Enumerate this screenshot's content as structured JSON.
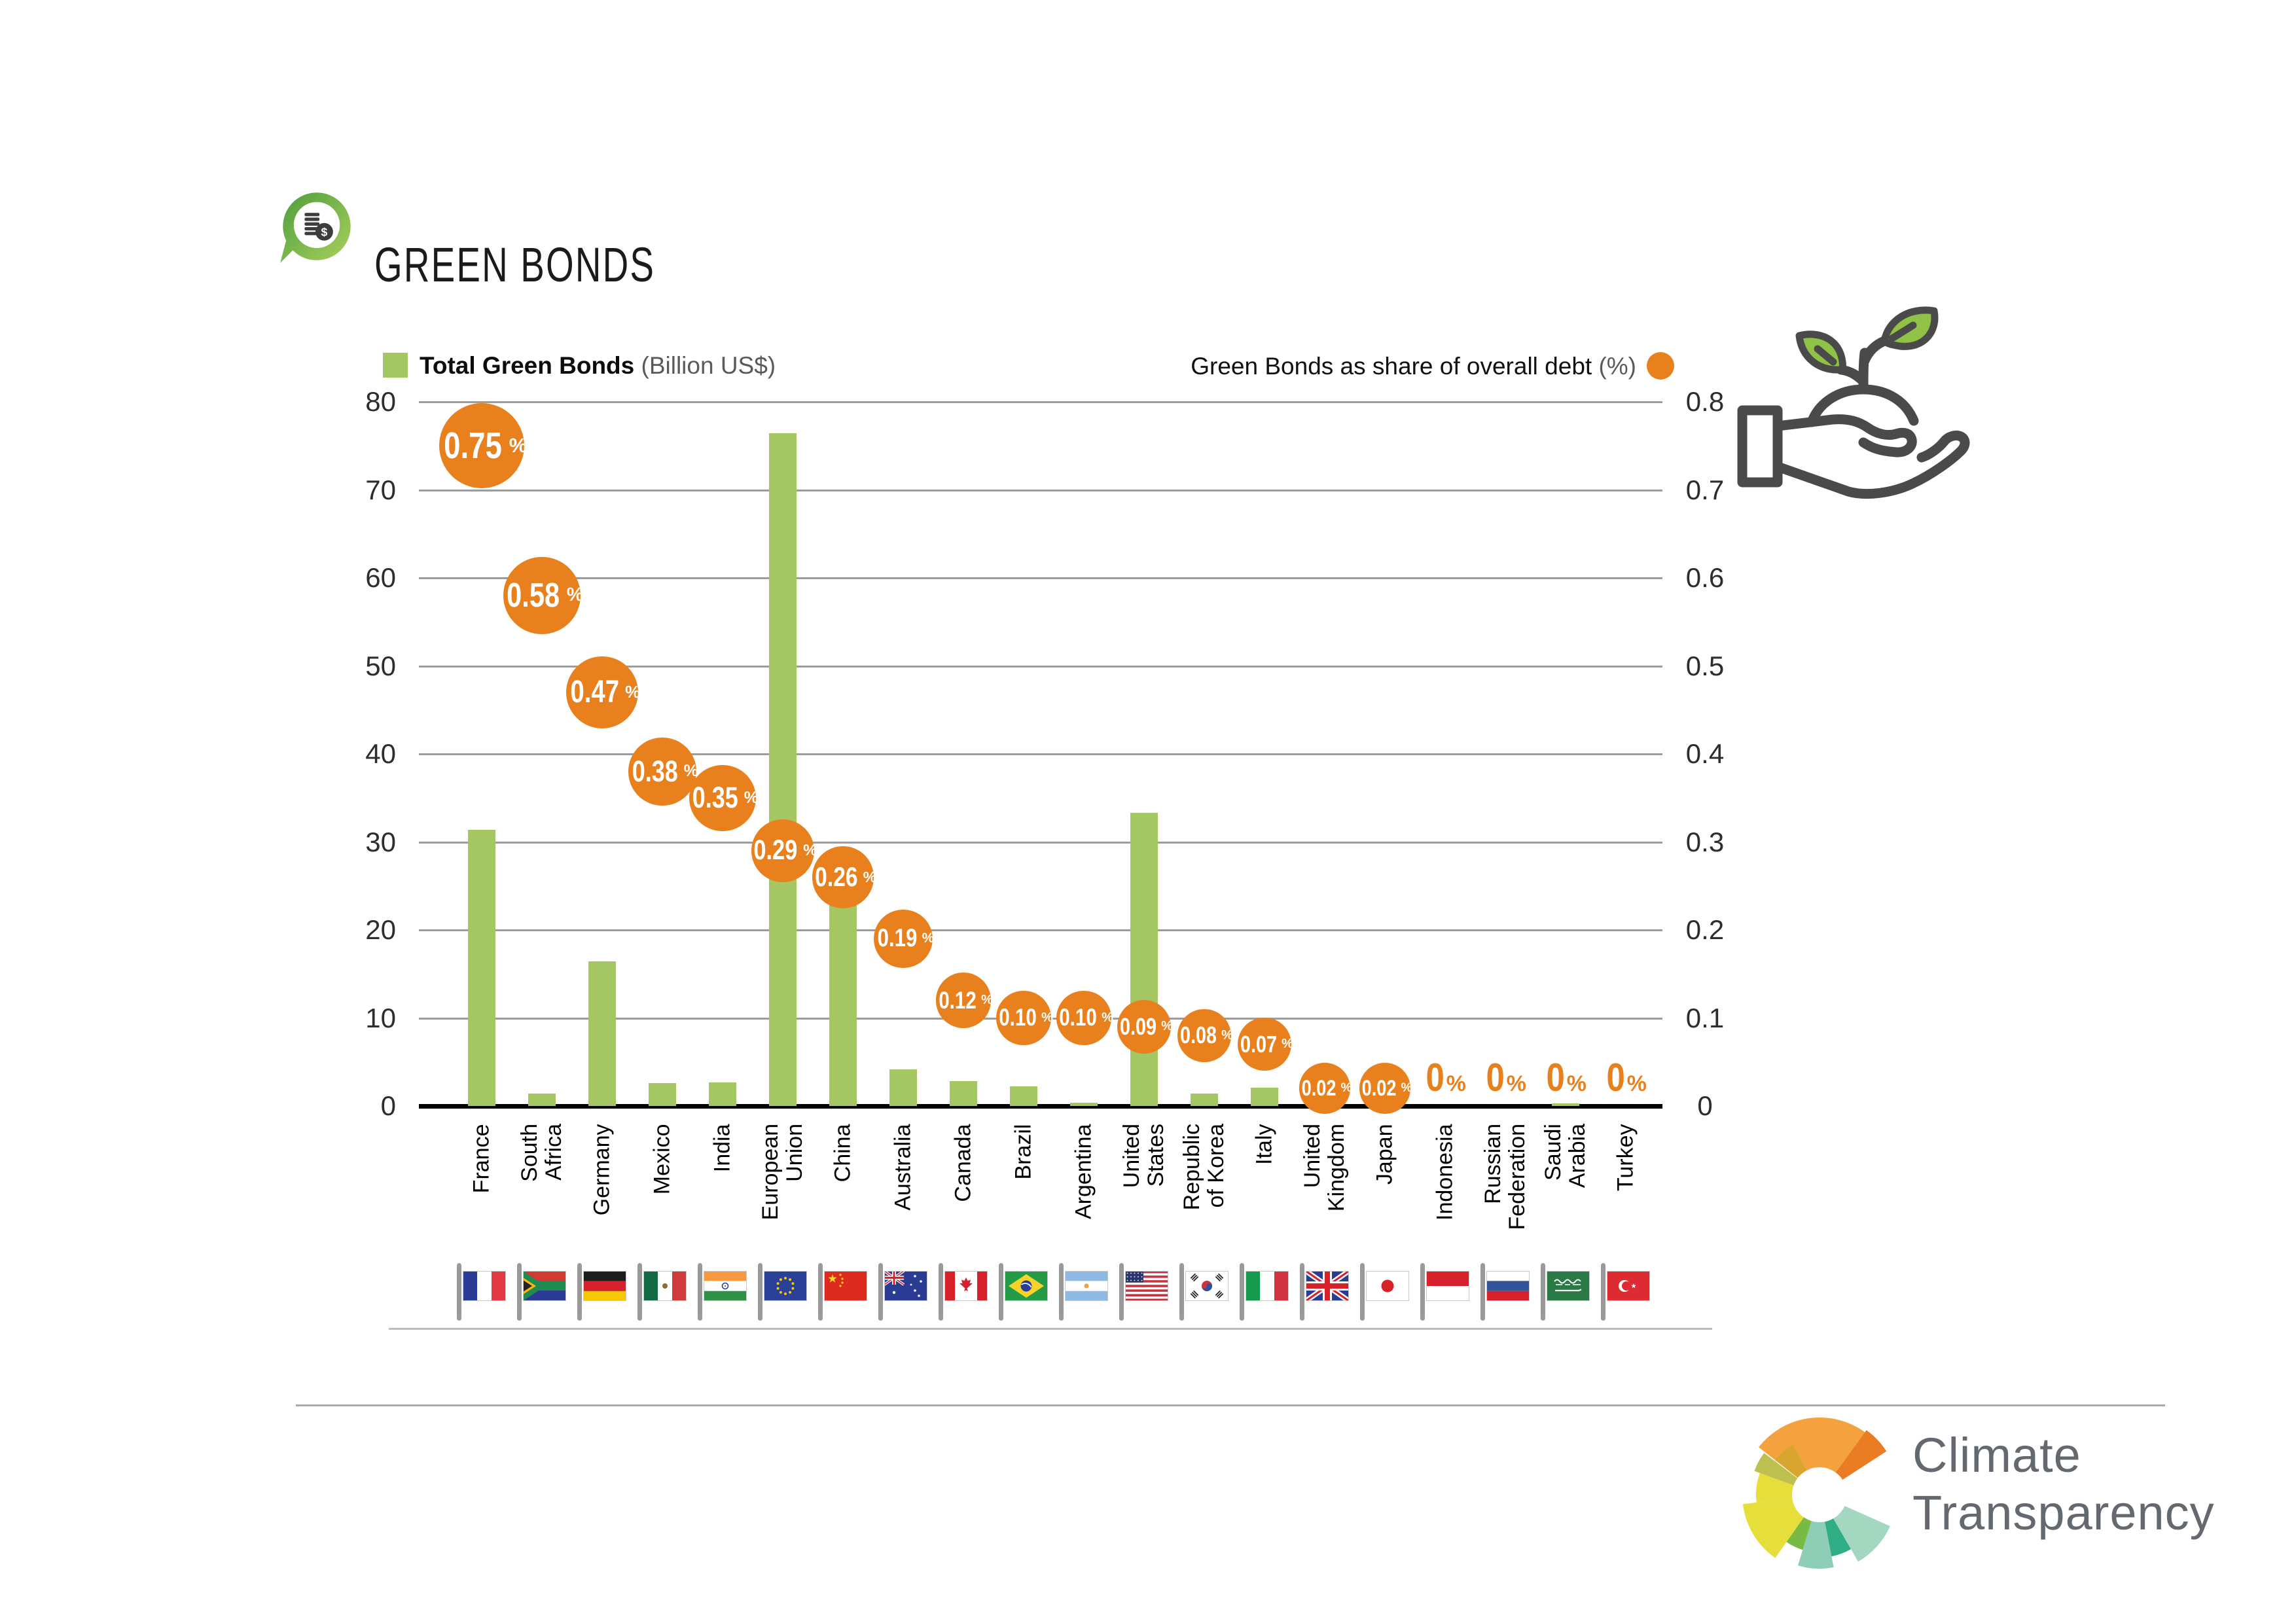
{
  "title": "GREEN BONDS",
  "legend": {
    "left_label": "Total Green Bonds",
    "left_unit": "(Billion US$)",
    "right_label": "Green Bonds as share of overall debt",
    "right_unit": "(%)"
  },
  "chart_data": {
    "type": "bar",
    "title": "Green Bonds",
    "categories": [
      "France",
      "South Africa",
      "Germany",
      "Mexico",
      "India",
      "European Union",
      "China",
      "Australia",
      "Canada",
      "Brazil",
      "Argentina",
      "United States",
      "Republic of Korea",
      "Italy",
      "United Kingdom",
      "Japan",
      "Indonesia",
      "Russian Federation",
      "Saudi Arabia",
      "Turkey"
    ],
    "category_label_lines": [
      "France",
      "South\nAfrica",
      "Germany",
      "Mexico",
      "India",
      "European\nUnion",
      "China",
      "Australia",
      "Canada",
      "Brazil",
      "Argentina",
      "United\nStates",
      "Republic\nof Korea",
      "Italy",
      "United\nKingdom",
      "Japan",
      "Indonesia",
      "Russian\nFederation",
      "Saudi\nArabia",
      "Turkey"
    ],
    "series": [
      {
        "name": "Total Green Bonds (Billion US$)",
        "axis": "left",
        "type": "bar",
        "values": [
          31.4,
          1.4,
          16.4,
          2.6,
          2.7,
          76.4,
          23.0,
          4.2,
          2.8,
          2.2,
          0.4,
          33.3,
          1.4,
          2.1,
          0,
          0,
          0,
          0,
          0.3,
          0
        ]
      },
      {
        "name": "Green Bonds as share of overall debt (%)",
        "axis": "right",
        "type": "bubble",
        "values": [
          0.75,
          0.58,
          0.47,
          0.38,
          0.35,
          0.29,
          0.26,
          0.19,
          0.12,
          0.1,
          0.1,
          0.09,
          0.08,
          0.07,
          0.02,
          0.02,
          0,
          0,
          0,
          0
        ],
        "labels": [
          "0.75",
          "0.58",
          "0.47",
          "0.38",
          "0.35",
          "0.29",
          "0.26",
          "0.19",
          "0.12",
          "0.10",
          "0.10",
          "0.09",
          "0.08",
          "0.07",
          "0.02",
          "0.02",
          "0",
          "0",
          "0",
          "0"
        ]
      }
    ],
    "left_axis": {
      "min": 0,
      "max": 80,
      "ticks": [
        "80",
        "70",
        "60",
        "50",
        "40",
        "30",
        "20",
        "10",
        "0"
      ]
    },
    "right_axis": {
      "min": 0,
      "max": 0.8,
      "ticks": [
        "0.8",
        "0.7",
        "0.6",
        "0.5",
        "0.4",
        "0.3",
        "0.2",
        "0.1",
        "0"
      ]
    },
    "grid": true,
    "legend_position": "top",
    "percent_suffix": "%"
  },
  "flags": [
    "flag-france",
    "flag-south-africa",
    "flag-germany",
    "flag-mexico",
    "flag-india",
    "flag-european-union",
    "flag-china",
    "flag-australia",
    "flag-canada",
    "flag-brazil",
    "flag-argentina",
    "flag-united-states",
    "flag-south-korea",
    "flag-italy",
    "flag-united-kingdom",
    "flag-japan",
    "flag-indonesia",
    "flag-russia",
    "flag-saudi-arabia",
    "flag-turkey"
  ],
  "icons": [
    "green-bonds-pin-icon",
    "hand-plant-icon",
    "pinwheel-icon"
  ],
  "footer": {
    "brand_line1": "Climate",
    "brand_line2": "Transparency"
  },
  "colors": {
    "bar_green": "#a4c663",
    "bubble_orange": "#e8811d",
    "grid": "#9c9c9c",
    "axis": "#000000",
    "text": "#1b1b1b",
    "brand_text": "#63696e",
    "leaf_green": "#8fc246",
    "icon_stroke": "#4a4a4a"
  }
}
